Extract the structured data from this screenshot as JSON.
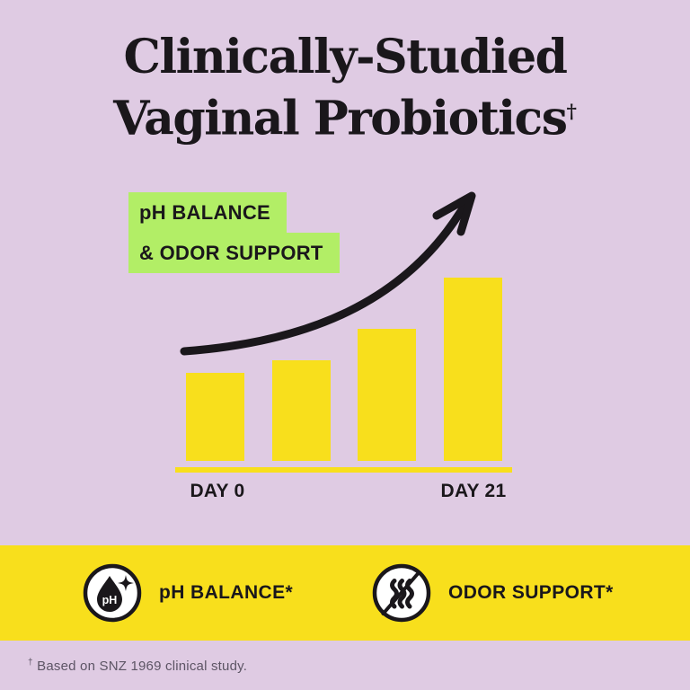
{
  "title": {
    "line1": "Clinically-Studied",
    "line2": "Vaginal Probiotics",
    "dagger": "†"
  },
  "chart": {
    "highlight_label": {
      "line1": "pH BALANCE",
      "line2": "& ODOR SUPPORT"
    },
    "x_axis": {
      "start_label": "DAY 0",
      "end_label": "DAY 21"
    }
  },
  "chart_data": {
    "type": "bar",
    "title": "pH BALANCE & ODOR SUPPORT",
    "categories": [
      "DAY 0",
      "",
      "",
      "DAY 21"
    ],
    "values": [
      48,
      55,
      72,
      100
    ],
    "xlabel": "",
    "ylabel": "",
    "value_units": "relative height, % of tallest bar (no numeric axis shown)",
    "bar_color": "#f8df1c",
    "axis_line_color": "#f8df1c",
    "grid": false,
    "legend": false,
    "annotations": [
      "hand-drawn black rising arrow over bars indicating increase from DAY 0 to DAY 21"
    ]
  },
  "banner": {
    "items": [
      {
        "icon": "ph-droplet-icon",
        "label": "pH BALANCE*"
      },
      {
        "icon": "odor-crossed-icon",
        "label": "ODOR SUPPORT*"
      }
    ]
  },
  "footnote": {
    "dagger": "†",
    "text": "Based on SNZ 1969 clinical study."
  },
  "icons": {
    "ph_droplet_text": "pH"
  },
  "colors": {
    "background_lavender": "#dfcbe3",
    "accent_yellow": "#f8df1c",
    "accent_green": "#b2ee66",
    "ink_black": "#1a171b",
    "footnote_gray": "#5d5565",
    "icon_circle_fill": "#ffffff"
  }
}
